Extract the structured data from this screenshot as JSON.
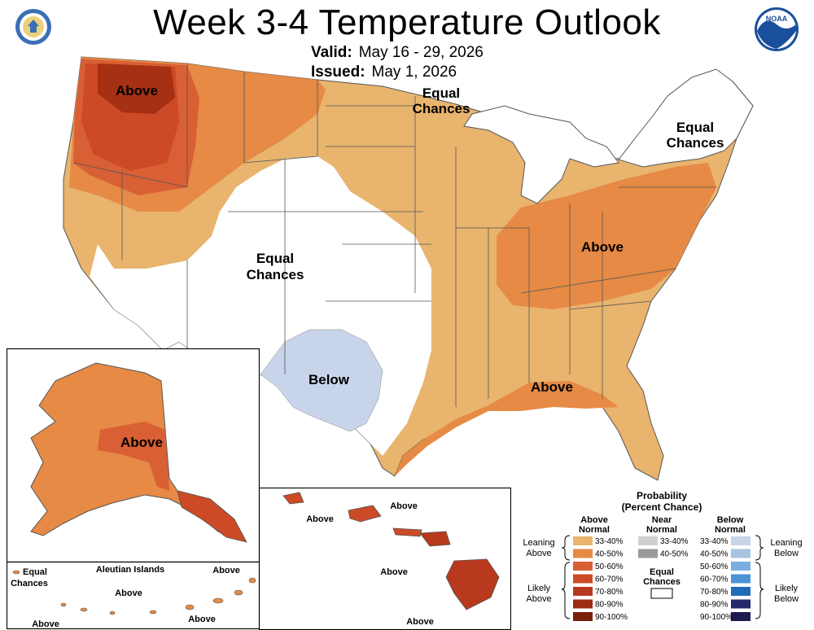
{
  "header": {
    "title": "Week 3-4 Temperature Outlook",
    "valid_label": "Valid:",
    "valid_value": "May 16 - 29, 2026",
    "issued_label": "Issued:",
    "issued_value": "May 1, 2026"
  },
  "logos": {
    "left": "commerce-seal-icon",
    "right": "noaa-logo-icon"
  },
  "map_labels": {
    "northwest_above": "Above",
    "north_equal_1": "Equal",
    "north_equal_2": "Chances",
    "northeast_equal_1": "Equal",
    "northeast_equal_2": "Chances",
    "west_equal_1": "Equal",
    "west_equal_2": "Chances",
    "ohio_above": "Above",
    "texas_below": "Below",
    "gulf_above": "Above"
  },
  "alaska": {
    "above": "Above",
    "aleutian_title": "Aleutian Islands",
    "equal_1": "Equal",
    "equal_2": "Chances",
    "above_2": "Above",
    "above_3": "Above",
    "above_4": "Above",
    "above_5": "Above"
  },
  "hawaii": {
    "above_1": "Above",
    "above_2": "Above",
    "above_3": "Above",
    "above_4": "Above"
  },
  "legend": {
    "title_1": "Probability",
    "title_2": "(Percent Chance)",
    "above_h1": "Above",
    "above_h2": "Normal",
    "near_h1": "Near",
    "near_h2": "Normal",
    "below_h1": "Below",
    "below_h2": "Normal",
    "leaning_above_1": "Leaning",
    "leaning_above_2": "Above",
    "likely_above_1": "Likely",
    "likely_above_2": "Above",
    "leaning_below_1": "Leaning",
    "leaning_below_2": "Below",
    "likely_below_1": "Likely",
    "likely_below_2": "Below",
    "equal_1": "Equal",
    "equal_2": "Chances",
    "above_bins": [
      "33-40%",
      "40-50%",
      "50-60%",
      "60-70%",
      "70-80%",
      "80-90%",
      "90-100%"
    ],
    "near_bins": [
      "33-40%",
      "40-50%"
    ],
    "below_bins": [
      "33-40%",
      "40-50%",
      "50-60%",
      "60-70%",
      "70-80%",
      "80-90%",
      "90-100%"
    ],
    "above_colors": [
      "#e8b46e",
      "#e68a45",
      "#d95f35",
      "#cc4a25",
      "#b8391d",
      "#9e2c12",
      "#7a1f0a"
    ],
    "near_colors": [
      "#cfcfcf",
      "#9a9a9a"
    ],
    "below_colors": [
      "#c8d4ea",
      "#a7c3e0",
      "#78afe0",
      "#4b92d6",
      "#1f6bb8",
      "#25296b",
      "#1c1a4f"
    ]
  }
}
